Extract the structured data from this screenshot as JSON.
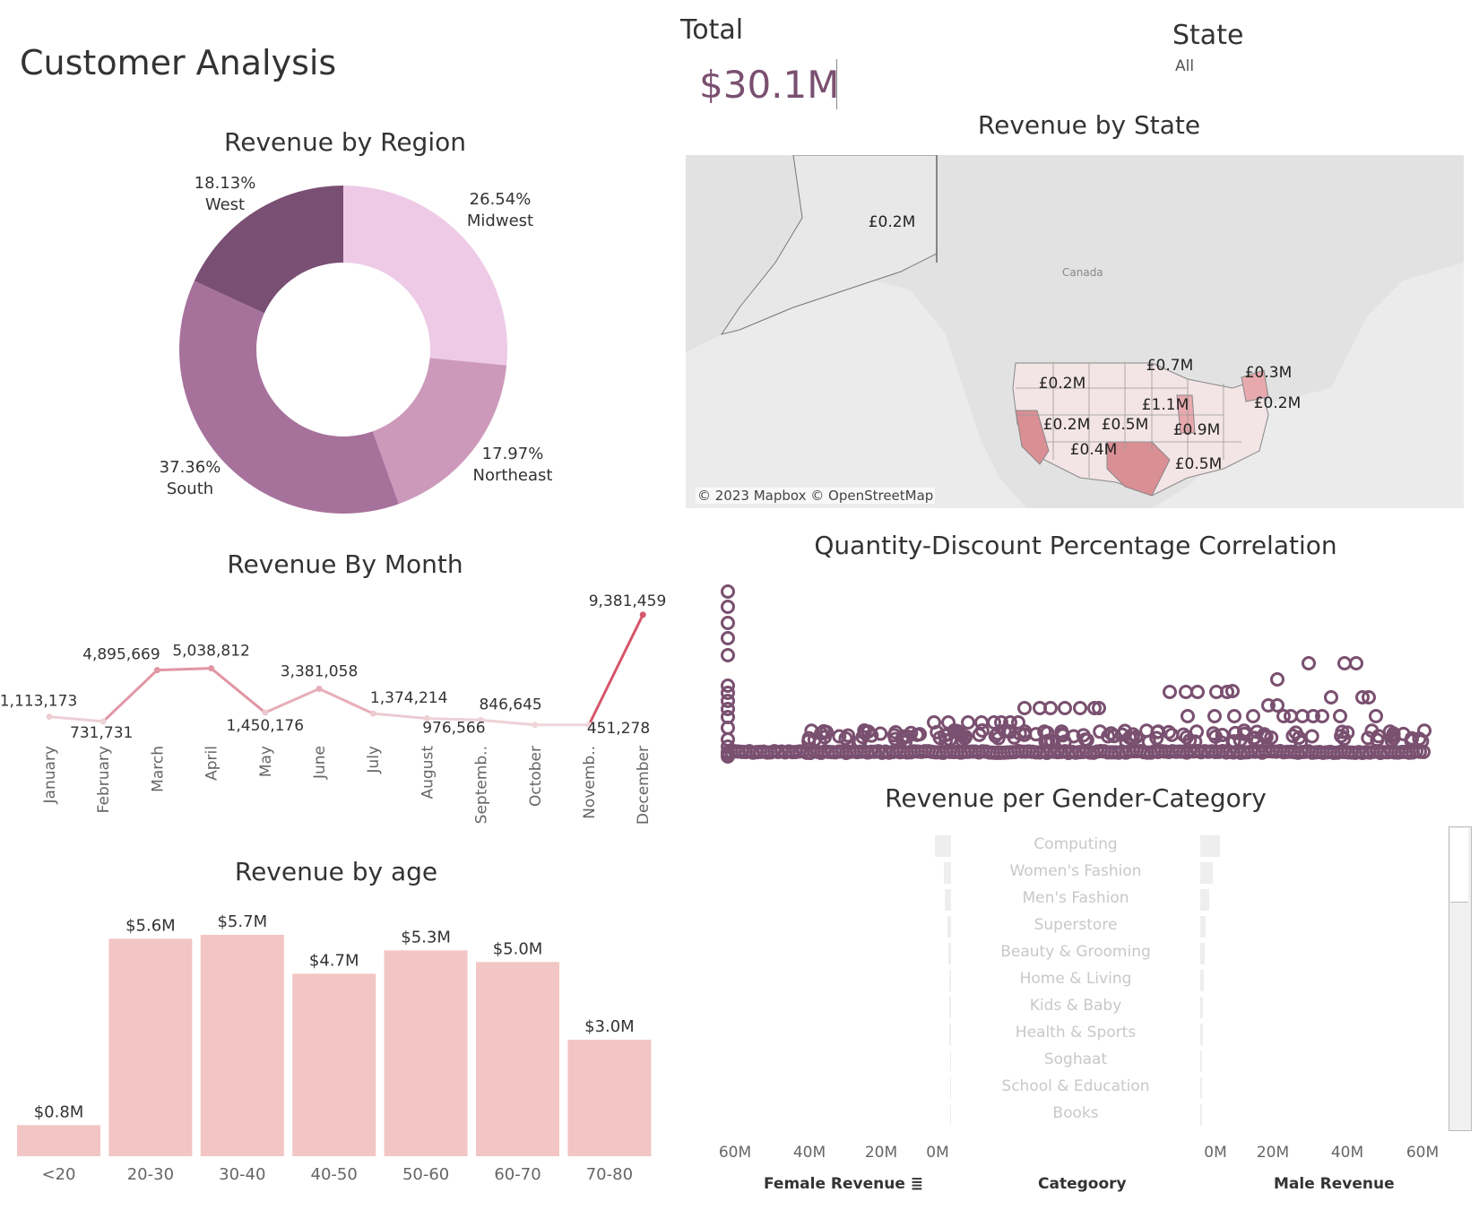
{
  "dashboard": {
    "title": "Customer Analysis"
  },
  "kpi": {
    "label": "Total",
    "value": "$30.1M"
  },
  "filter": {
    "label": "State",
    "value": "All"
  },
  "colors": {
    "dark": "#7a4f74",
    "mid": "#a6729c",
    "light": "#cc99bb",
    "lighter": "#eecae6",
    "bar": "#f2c6c4",
    "scatter": "#7a5070"
  },
  "region_chart": {
    "title": "Revenue by Region",
    "chart_data": {
      "type": "pie",
      "categories": [
        "Midwest",
        "Northeast",
        "South",
        "West"
      ],
      "values": [
        26.54,
        17.97,
        37.36,
        18.13
      ],
      "labels": [
        "26.54%",
        "17.97%",
        "37.36%",
        "18.13%"
      ]
    }
  },
  "month_chart": {
    "title": "Revenue By Month",
    "chart_data": {
      "type": "line",
      "categories": [
        "January",
        "February",
        "March",
        "April",
        "May",
        "June",
        "July",
        "August",
        "Septemb..",
        "October",
        "Novemb..",
        "December"
      ],
      "values": [
        1113173,
        731731,
        4895669,
        5038812,
        1450176,
        3381058,
        1374214,
        976566,
        846645,
        451278,
        451278,
        9381459
      ],
      "labels": [
        "1,113,173",
        "731,731",
        "4,895,669",
        "5,038,812",
        "1,450,176",
        "3,381,058",
        "1,374,214",
        "976,566",
        "846,645",
        "",
        "451,278",
        "9,381,459"
      ]
    }
  },
  "age_chart": {
    "title": "Revenue by age",
    "chart_data": {
      "type": "bar",
      "categories": [
        "<20",
        "20-30",
        "30-40",
        "40-50",
        "50-60",
        "60-70",
        "70-80"
      ],
      "values": [
        0.8,
        5.6,
        5.7,
        4.7,
        5.3,
        5.0,
        3.0
      ],
      "labels": [
        "$0.8M",
        "$5.6M",
        "$5.7M",
        "$4.7M",
        "$5.3M",
        "$5.0M",
        "$3.0M"
      ]
    }
  },
  "state_map": {
    "title": "Revenue by State",
    "country_label": "Canada",
    "copyright": "© 2023 Mapbox © OpenStreetMap",
    "labels": [
      "£0.2M",
      "£0.2M",
      "£0.7M",
      "£0.3M",
      "£1.1M",
      "£0.2M",
      "£0.2M",
      "£0.5M",
      "£0.9M",
      "£0.4M",
      "£0.5M"
    ]
  },
  "scatter_chart": {
    "title": "Quantity-Discount Percentage Correlation",
    "chart_data": {
      "type": "scatter"
    }
  },
  "gender_chart": {
    "title": "Revenue per Gender-Category",
    "categories": [
      "Computing",
      "Women's Fashion",
      "Men's Fashion",
      "Superstore",
      "Beauty & Grooming",
      "Home & Living",
      "Kids & Baby",
      "Health & Sports",
      "Soghaat",
      "School & Education",
      "Books"
    ],
    "female_ticks": [
      "60M",
      "40M",
      "20M",
      "0M"
    ],
    "male_ticks": [
      "0M",
      "20M",
      "40M",
      "60M"
    ],
    "female_label": "Female Revenue",
    "category_label": "Categoory",
    "male_label": "Male Revenue"
  }
}
